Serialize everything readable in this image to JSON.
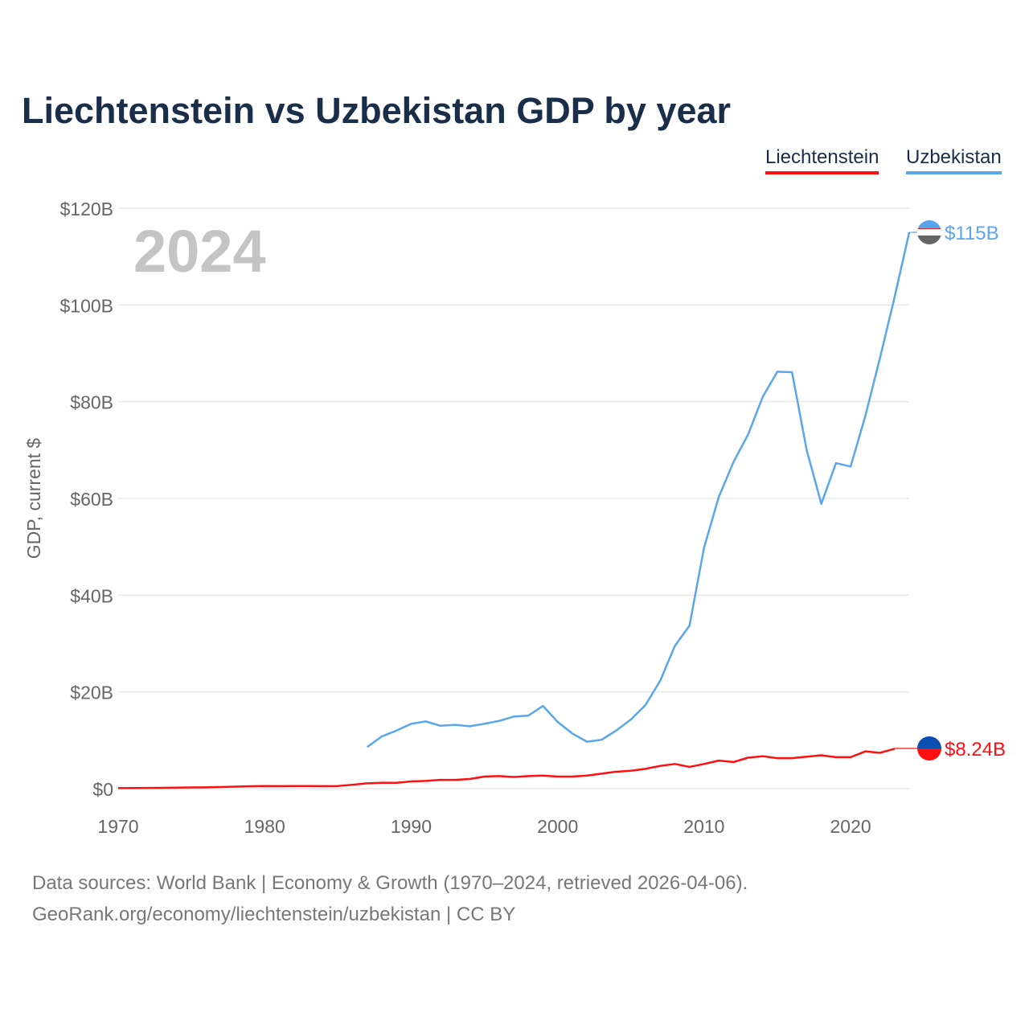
{
  "chart_data": {
    "type": "line",
    "title": "Liechtenstein vs Uzbekistan GDP by year",
    "ylabel": "GDP, current $",
    "xlabel": "",
    "xlim": [
      1970,
      2024
    ],
    "ylim": [
      0,
      120
    ],
    "x_ticks": [
      1970,
      1980,
      1990,
      2000,
      2010,
      2020
    ],
    "y_ticks": [
      0,
      20,
      40,
      60,
      80,
      100,
      120
    ],
    "y_tick_labels": [
      "$0",
      "$20B",
      "$40B",
      "$60B",
      "$80B",
      "$100B",
      "$120B"
    ],
    "grid": true,
    "legend_position": "top-right",
    "year_annotation": "2024",
    "series": [
      {
        "name": "Liechtenstein",
        "color": "#ff1010",
        "end_label": "$8.24B",
        "x": [
          1970,
          1971,
          1972,
          1973,
          1974,
          1975,
          1976,
          1977,
          1978,
          1979,
          1980,
          1981,
          1982,
          1983,
          1984,
          1985,
          1986,
          1987,
          1988,
          1989,
          1990,
          1991,
          1992,
          1993,
          1994,
          1995,
          1996,
          1997,
          1998,
          1999,
          2000,
          2001,
          2002,
          2003,
          2004,
          2005,
          2006,
          2007,
          2008,
          2009,
          2010,
          2011,
          2012,
          2013,
          2014,
          2015,
          2016,
          2017,
          2018,
          2019,
          2020,
          2021,
          2022,
          2023
        ],
        "values": [
          0.1,
          0.12,
          0.14,
          0.16,
          0.2,
          0.25,
          0.28,
          0.33,
          0.42,
          0.5,
          0.55,
          0.52,
          0.55,
          0.55,
          0.52,
          0.55,
          0.8,
          1.1,
          1.2,
          1.2,
          1.5,
          1.6,
          1.8,
          1.8,
          2.0,
          2.5,
          2.6,
          2.4,
          2.6,
          2.7,
          2.5,
          2.5,
          2.7,
          3.1,
          3.5,
          3.7,
          4.1,
          4.7,
          5.1,
          4.5,
          5.1,
          5.8,
          5.5,
          6.4,
          6.7,
          6.3,
          6.3,
          6.6,
          6.9,
          6.5,
          6.5,
          7.7,
          7.4,
          8.24
        ]
      },
      {
        "name": "Uzbekistan",
        "color": "#5aa6ec",
        "end_label": "$115B",
        "x": [
          1987,
          1988,
          1989,
          1990,
          1991,
          1992,
          1993,
          1994,
          1995,
          1996,
          1997,
          1998,
          1999,
          2000,
          2001,
          2002,
          2003,
          2004,
          2005,
          2006,
          2007,
          2008,
          2009,
          2010,
          2011,
          2012,
          2013,
          2014,
          2015,
          2016,
          2017,
          2018,
          2019,
          2020,
          2021,
          2022,
          2023,
          2024
        ],
        "values": [
          8.6,
          10.8,
          12.0,
          13.4,
          13.9,
          13.0,
          13.2,
          12.9,
          13.4,
          14.0,
          14.9,
          15.1,
          17.1,
          13.8,
          11.4,
          9.7,
          10.1,
          12.0,
          14.3,
          17.3,
          22.3,
          29.5,
          33.7,
          49.9,
          60.3,
          67.5,
          73.2,
          81.0,
          86.2,
          86.1,
          70.0,
          58.9,
          67.3,
          66.6,
          77.0,
          89.0,
          101.6,
          115.0
        ]
      }
    ],
    "sources": [
      "Data sources: World Bank | Economy & Growth (1970–2024, retrieved 2026-04-06).",
      "GeoRank.org/economy/liechtenstein/uzbekistan | CC BY"
    ]
  }
}
